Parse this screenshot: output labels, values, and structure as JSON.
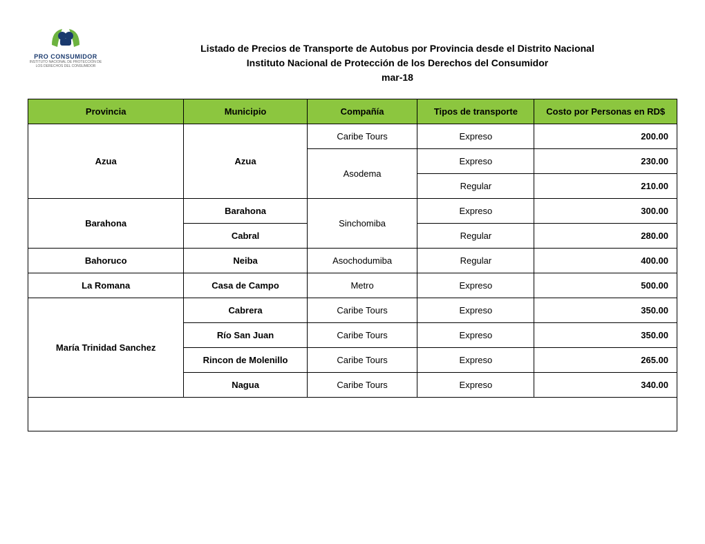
{
  "logo": {
    "name": "PRO CONSUMIDOR",
    "subtitle": "INSTITUTO NACIONAL DE PROTECCIÓN DE LOS DERECHOS DEL CONSUMIDOR"
  },
  "titles": {
    "line1": "Listado de Precios de Transporte de Autobus por Provincia desde el Distrito Nacional",
    "line2": "Instituto Nacional de Protección de los Derechos del Consumidor",
    "date": "mar-18"
  },
  "colors": {
    "header_bg": "#8cc63f",
    "border": "#000000",
    "text": "#000000"
  },
  "columns": [
    "Provincia",
    "Municipio",
    "Compañía",
    "Tipos de transporte",
    "Costo por Personas en RD$"
  ],
  "rows": [
    {
      "provincia": "Azua",
      "prov_rows": 3,
      "municipio": "Azua",
      "muni_rows": 3,
      "compania": "Caribe Tours",
      "comp_rows": 1,
      "tipo": "Expreso",
      "precio": "200.00"
    },
    {
      "compania": "Asodema",
      "comp_rows": 2,
      "tipo": "Expreso",
      "precio": "230.00"
    },
    {
      "tipo": "Regular",
      "precio": "210.00"
    },
    {
      "provincia": "Barahona",
      "prov_rows": 2,
      "municipio": "Barahona",
      "muni_rows": 1,
      "muni_bold": true,
      "compania": "Sinchomiba",
      "comp_rows": 2,
      "tipo": "Expreso",
      "precio": "300.00"
    },
    {
      "municipio": "Cabral",
      "muni_rows": 1,
      "muni_bold": true,
      "tipo": "Regular",
      "precio": "280.00"
    },
    {
      "provincia": "Bahoruco",
      "prov_rows": 1,
      "municipio": "Neiba",
      "muni_rows": 1,
      "muni_bold": true,
      "compania": "Asochodumiba",
      "comp_rows": 1,
      "tipo": "Regular",
      "precio": "400.00"
    },
    {
      "provincia": "La Romana",
      "prov_rows": 1,
      "municipio": "Casa de Campo",
      "muni_rows": 1,
      "muni_bold": true,
      "compania": "Metro",
      "comp_rows": 1,
      "tipo": "Expreso",
      "precio": "500.00"
    },
    {
      "provincia": "María Trinidad Sanchez",
      "prov_rows": 4,
      "municipio": "Cabrera",
      "muni_rows": 1,
      "muni_bold": true,
      "compania": "Caribe Tours",
      "comp_rows": 1,
      "tipo": "Expreso",
      "precio": "350.00"
    },
    {
      "municipio": "Río San Juan",
      "muni_rows": 1,
      "muni_bold": true,
      "compania": "Caribe Tours",
      "comp_rows": 1,
      "tipo": "Expreso",
      "precio": "350.00"
    },
    {
      "municipio": "Rincon de Molenillo",
      "muni_rows": 1,
      "muni_bold": true,
      "compania": "Caribe Tours",
      "comp_rows": 1,
      "tipo": "Expreso",
      "precio": "265.00"
    },
    {
      "municipio": "Nagua",
      "muni_rows": 1,
      "muni_bold": true,
      "compania": "Caribe Tours",
      "comp_rows": 1,
      "tipo": "Expreso",
      "precio": "340.00"
    }
  ]
}
